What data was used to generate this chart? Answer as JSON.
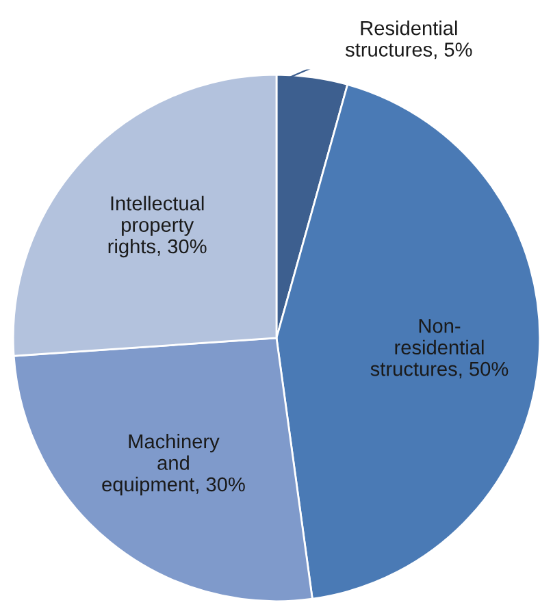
{
  "chart_data": {
    "type": "pie",
    "categories": [
      "Residential\nstructures",
      "Non-\nresidential\nstructures",
      "Machinery\nand\nequipment",
      "Intellectual\nproperty\nrights"
    ],
    "values": [
      5,
      50,
      30,
      30
    ],
    "value_labels": [
      "5%",
      "50%",
      "30%",
      "30%"
    ],
    "colors": [
      "#3d5f8f",
      "#4a7ab5",
      "#7f9acb",
      "#b3c2dd"
    ],
    "legend": false
  }
}
